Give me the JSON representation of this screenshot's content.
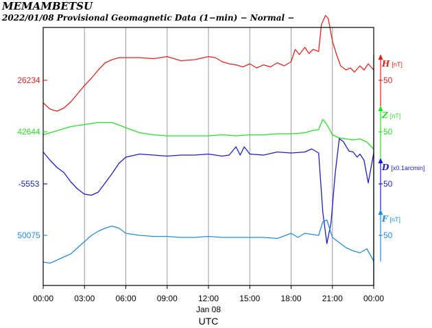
{
  "header": {
    "title": "MEMAMBETSU",
    "subtitle": "2022/01/08  Provisional Geomagnetic Data (1−min)  − Normal −"
  },
  "chart_data": {
    "type": "line",
    "title": "MEMAMBETSU",
    "subtitle": "2022/01/08  Provisional Geomagnetic Data (1−min)  − Normal −",
    "xlabel": "UTC",
    "x_date_label": "Jan 08",
    "x_ticks": [
      "00:00",
      "03:00",
      "06:00",
      "09:00",
      "12:00",
      "15:00",
      "18:00",
      "21:00",
      "00:00"
    ],
    "xlim_hours": [
      0,
      24
    ],
    "grid": true,
    "series": [
      {
        "name": "H",
        "unit": "[nT]",
        "color": "#e8201a",
        "baseline_label": "26234",
        "scale_label": "50",
        "hours": [
          0,
          0.5,
          1,
          1.5,
          2,
          2.5,
          3,
          3.5,
          4,
          4.5,
          5,
          5.5,
          6,
          7,
          8,
          9,
          10,
          11,
          12,
          12.5,
          13,
          13.5,
          14,
          14.5,
          15,
          15.5,
          16,
          16.5,
          17,
          17.5,
          18,
          18.3,
          18.6,
          19,
          19.3,
          19.6,
          20,
          20.2,
          20.5,
          20.7,
          21,
          21.3,
          21.6,
          22,
          22.3,
          22.6,
          23,
          23.3,
          23.6,
          24
        ],
        "values": [
          26212,
          26206,
          26204,
          26207,
          26213,
          26221,
          26229,
          26236,
          26244,
          26251,
          26254,
          26256,
          26256,
          26256,
          26255,
          26257,
          26253,
          26254,
          26257,
          26256,
          26252,
          26250,
          26249,
          26247,
          26250,
          26246,
          26249,
          26247,
          26251,
          26248,
          26252,
          26264,
          26259,
          26266,
          26260,
          26264,
          26262,
          26288,
          26297,
          26294,
          26272,
          26259,
          26248,
          26244,
          26246,
          26242,
          26248,
          26244,
          26250,
          26244
        ]
      },
      {
        "name": "Z",
        "unit": "[nT]",
        "color": "#1ee61e",
        "baseline_label": "42644",
        "scale_label": "50",
        "hours": [
          0,
          1,
          2,
          3,
          4,
          5,
          6,
          7,
          8,
          9,
          10,
          11,
          12,
          13,
          14,
          15,
          16,
          17,
          18,
          19,
          19.5,
          20,
          20.3,
          20.6,
          21,
          21.5,
          22,
          22.5,
          23,
          23.5,
          24
        ],
        "values": [
          42641,
          42645,
          42649,
          42651,
          42653,
          42653,
          42648,
          42643,
          42641,
          42640,
          42640,
          42640,
          42640,
          42641,
          42640,
          42641,
          42641,
          42642,
          42642,
          42643,
          42645,
          42646,
          42656,
          42651,
          42641,
          42638,
          42637,
          42636,
          42637,
          42634,
          42627
        ]
      },
      {
        "name": "D",
        "unit": "[x0.1arcmin]",
        "color": "#1a1ad6",
        "baseline_label": "-5553",
        "scale_label": "50",
        "hours": [
          0,
          0.5,
          1,
          1.5,
          2,
          2.5,
          3,
          3.5,
          4,
          4.5,
          5,
          5.5,
          6,
          7,
          8,
          9,
          10,
          11,
          12,
          13,
          13.5,
          14,
          14.3,
          14.6,
          15,
          16,
          17,
          18,
          19,
          19.5,
          20,
          20.3,
          20.6,
          20.9,
          21.2,
          21.5,
          21.8,
          22.2,
          22.5,
          22.8,
          23,
          23.3,
          23.6,
          24
        ],
        "values": [
          -5522,
          -5530,
          -5537,
          -5542,
          -5551,
          -5558,
          -5563,
          -5564,
          -5561,
          -5552,
          -5543,
          -5533,
          -5527,
          -5524,
          -5525,
          -5526,
          -5525,
          -5525,
          -5524,
          -5526,
          -5525,
          -5517,
          -5525,
          -5517,
          -5524,
          -5525,
          -5522,
          -5523,
          -5522,
          -5519,
          -5523,
          -5580,
          -5611,
          -5591,
          -5543,
          -5509,
          -5512,
          -5521,
          -5522,
          -5527,
          -5524,
          -5530,
          -5552,
          -5523
        ]
      },
      {
        "name": "F",
        "unit": "[nT]",
        "color": "#1e8ce6",
        "baseline_label": "50075",
        "scale_label": "50",
        "hours": [
          0,
          0.5,
          1,
          1.5,
          2,
          2.5,
          3,
          3.5,
          4,
          4.5,
          5,
          5.5,
          6,
          7,
          8,
          9,
          10,
          11,
          12,
          13,
          14,
          15,
          16,
          17,
          18,
          18.5,
          19,
          19.5,
          20,
          20.3,
          20.6,
          21,
          21.5,
          22,
          22.5,
          23,
          23.5,
          24
        ],
        "values": [
          50049,
          50048,
          50051,
          50054,
          50057,
          50063,
          50069,
          50075,
          50079,
          50082,
          50084,
          50082,
          50077,
          50075,
          50074,
          50074,
          50073,
          50073,
          50074,
          50073,
          50073,
          50073,
          50073,
          50072,
          50077,
          50073,
          50077,
          50076,
          50075,
          50088,
          50090,
          50073,
          50068,
          50063,
          50060,
          50058,
          50062,
          50050
        ]
      }
    ]
  }
}
